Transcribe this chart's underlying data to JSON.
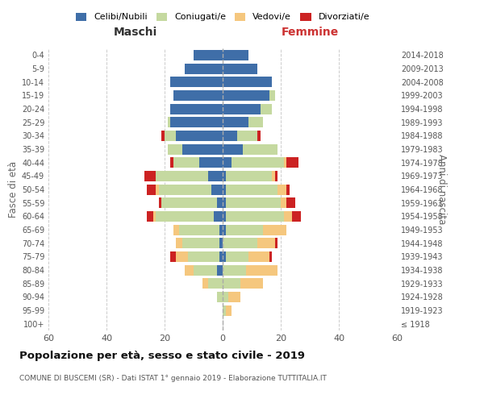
{
  "age_groups": [
    "100+",
    "95-99",
    "90-94",
    "85-89",
    "80-84",
    "75-79",
    "70-74",
    "65-69",
    "60-64",
    "55-59",
    "50-54",
    "45-49",
    "40-44",
    "35-39",
    "30-34",
    "25-29",
    "20-24",
    "15-19",
    "10-14",
    "5-9",
    "0-4"
  ],
  "birth_years": [
    "≤ 1918",
    "1919-1923",
    "1924-1928",
    "1929-1933",
    "1934-1938",
    "1939-1943",
    "1944-1948",
    "1949-1953",
    "1954-1958",
    "1959-1963",
    "1964-1968",
    "1969-1973",
    "1974-1978",
    "1979-1983",
    "1984-1988",
    "1989-1993",
    "1994-1998",
    "1999-2003",
    "2004-2008",
    "2009-2013",
    "2014-2018"
  ],
  "male": {
    "celibi": [
      0,
      0,
      0,
      0,
      2,
      1,
      1,
      1,
      3,
      2,
      4,
      5,
      8,
      14,
      16,
      18,
      18,
      17,
      18,
      13,
      10
    ],
    "coniugati": [
      0,
      0,
      2,
      5,
      8,
      11,
      13,
      14,
      20,
      19,
      18,
      18,
      9,
      5,
      4,
      1,
      0,
      0,
      0,
      0,
      0
    ],
    "vedovi": [
      0,
      0,
      0,
      2,
      3,
      4,
      2,
      2,
      1,
      0,
      1,
      0,
      0,
      0,
      0,
      0,
      0,
      0,
      0,
      0,
      0
    ],
    "divorziati": [
      0,
      0,
      0,
      0,
      0,
      2,
      0,
      0,
      2,
      1,
      3,
      4,
      1,
      0,
      1,
      0,
      0,
      0,
      0,
      0,
      0
    ]
  },
  "female": {
    "nubili": [
      0,
      0,
      0,
      0,
      0,
      1,
      0,
      1,
      1,
      1,
      1,
      1,
      3,
      7,
      5,
      9,
      13,
      16,
      17,
      12,
      9
    ],
    "coniugate": [
      0,
      1,
      2,
      6,
      8,
      8,
      12,
      13,
      20,
      19,
      18,
      16,
      18,
      12,
      7,
      5,
      4,
      2,
      0,
      0,
      0
    ],
    "vedove": [
      0,
      2,
      4,
      8,
      11,
      7,
      6,
      8,
      3,
      2,
      3,
      1,
      1,
      0,
      0,
      0,
      0,
      0,
      0,
      0,
      0
    ],
    "divorziate": [
      0,
      0,
      0,
      0,
      0,
      1,
      1,
      0,
      3,
      3,
      1,
      1,
      4,
      0,
      1,
      0,
      0,
      0,
      0,
      0,
      0
    ]
  },
  "colors": {
    "celibi": "#3f6ea8",
    "coniugati": "#c5d9a0",
    "vedovi": "#f5c77e",
    "divorziati": "#cc2222"
  },
  "xlim": 60,
  "title": "Popolazione per età, sesso e stato civile - 2019",
  "subtitle": "COMUNE DI BUSCEMI (SR) - Dati ISTAT 1° gennaio 2019 - Elaborazione TUTTITALIA.IT",
  "legend_labels": [
    "Celibi/Nubili",
    "Coniugati/e",
    "Vedovi/e",
    "Divorziati/e"
  ],
  "ylabel_left": "Fasce di età",
  "ylabel_right": "Anni di nascita",
  "xlabel_left": "Maschi",
  "xlabel_right": "Femmine"
}
